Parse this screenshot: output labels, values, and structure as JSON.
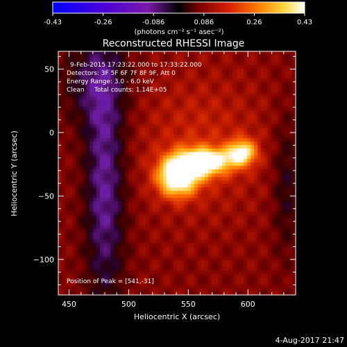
{
  "chart_data": {
    "type": "heatmap",
    "title": "Reconstructed RHESSI Image",
    "xlabel": "Heliocentric X (arcsec)",
    "ylabel": "Heliocentric Y (arcsec)",
    "xlim": [
      441,
      640
    ],
    "ylim": [
      -128,
      64
    ],
    "x_ticks": [
      450,
      500,
      550,
      600
    ],
    "y_ticks": [
      50,
      0,
      -50,
      -100
    ],
    "colorbar": {
      "range": [
        -0.43,
        0.43
      ],
      "ticks": [
        "-0.43",
        "-0.26",
        "-0.086",
        "0.086",
        "0.26",
        "0.43"
      ],
      "label": "(photons cm⁻² s⁻¹ asec⁻²)",
      "colors": [
        "#0000ff",
        "#5a00c8",
        "#8a1aa0",
        "#000000",
        "#8a0000",
        "#e02000",
        "#ff8a00",
        "#ffe040",
        "#ffffff"
      ]
    },
    "info": {
      "line1": "9-Feb-2015 17:23:22.000 to 17:33:22.000",
      "line2": "Detectors: 3F 5F 6F 7F 8F 9F, Att 0",
      "line3": "Energy Range: 3.0 - 6.0 keV",
      "line4": "Clean     Total counts: 1.14E+05"
    },
    "peak_label": "Position of Peak = [541,-31]",
    "peak_position": [
      541,
      -31
    ],
    "sources": [
      {
        "x": 541,
        "y": -31,
        "peak": 0.43
      },
      {
        "x": 594,
        "y": -16,
        "peak": 0.3
      }
    ]
  },
  "footer": {
    "timestamp": "4-Aug-2017 21:47"
  }
}
